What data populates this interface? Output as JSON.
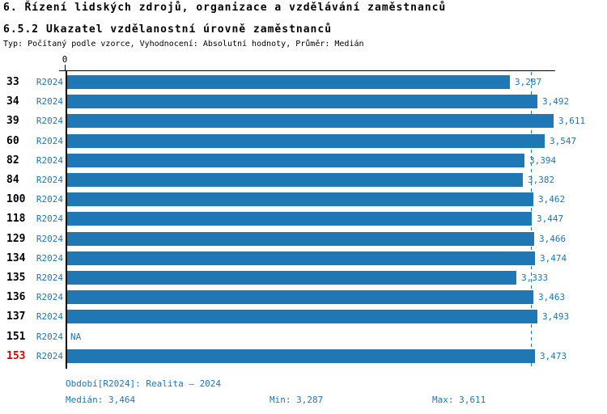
{
  "header": {
    "title1": "6. Řízení lidských zdrojů, organizace a vzdělávání zaměstnanců",
    "title2": "6.5.2 Ukazatel vzdělanostní úrovně zaměstnanců",
    "meta": "Typ: Počítaný podle vzorce, Vyhodnocení: Absolutní hodnoty, Průměr: Medián"
  },
  "colors": {
    "bar": "#1F77B4",
    "blue_text": "#1F77B4",
    "highlight_row_id": "#DC0000",
    "axis": "#000000"
  },
  "chart_data": {
    "type": "bar",
    "orientation": "horizontal",
    "title": "6.5.2 Ukazatel vzdělanostní úrovně zaměstnanců",
    "axis_zero_label": "0",
    "value_axis_min": 0,
    "value_axis_max": 3611,
    "median_value": 3464,
    "grid": false,
    "legend": false,
    "categories": [
      "33",
      "34",
      "39",
      "60",
      "82",
      "84",
      "100",
      "118",
      "129",
      "134",
      "135",
      "136",
      "137",
      "151",
      "153"
    ],
    "series_name": "R2024",
    "rows": [
      {
        "id": "33",
        "period": "R2024",
        "value": 3287,
        "label": "3,287",
        "na": false,
        "highlight": false
      },
      {
        "id": "34",
        "period": "R2024",
        "value": 3492,
        "label": "3,492",
        "na": false,
        "highlight": false
      },
      {
        "id": "39",
        "period": "R2024",
        "value": 3611,
        "label": "3,611",
        "na": false,
        "highlight": false
      },
      {
        "id": "60",
        "period": "R2024",
        "value": 3547,
        "label": "3,547",
        "na": false,
        "highlight": false
      },
      {
        "id": "82",
        "period": "R2024",
        "value": 3394,
        "label": "3,394",
        "na": false,
        "highlight": false
      },
      {
        "id": "84",
        "period": "R2024",
        "value": 3382,
        "label": "3,382",
        "na": false,
        "highlight": false
      },
      {
        "id": "100",
        "period": "R2024",
        "value": 3462,
        "label": "3,462",
        "na": false,
        "highlight": false
      },
      {
        "id": "118",
        "period": "R2024",
        "value": 3447,
        "label": "3,447",
        "na": false,
        "highlight": false
      },
      {
        "id": "129",
        "period": "R2024",
        "value": 3466,
        "label": "3,466",
        "na": false,
        "highlight": false
      },
      {
        "id": "134",
        "period": "R2024",
        "value": 3474,
        "label": "3,474",
        "na": false,
        "highlight": false
      },
      {
        "id": "135",
        "period": "R2024",
        "value": 3333,
        "label": "3,333",
        "na": false,
        "highlight": false
      },
      {
        "id": "136",
        "period": "R2024",
        "value": 3463,
        "label": "3,463",
        "na": false,
        "highlight": false
      },
      {
        "id": "137",
        "period": "R2024",
        "value": 3493,
        "label": "3,493",
        "na": false,
        "highlight": false
      },
      {
        "id": "151",
        "period": "R2024",
        "value": null,
        "label": "NA",
        "na": true,
        "highlight": false
      },
      {
        "id": "153",
        "period": "R2024",
        "value": 3473,
        "label": "3,473",
        "na": false,
        "highlight": true
      }
    ],
    "summary": {
      "median": 3464,
      "min": 3287,
      "max": 3611
    }
  },
  "footer": {
    "period_line": "Období[R2024]: Realita – 2024",
    "median": "Medián: 3,464",
    "min": "Min: 3,287",
    "max": "Max: 3,611"
  }
}
